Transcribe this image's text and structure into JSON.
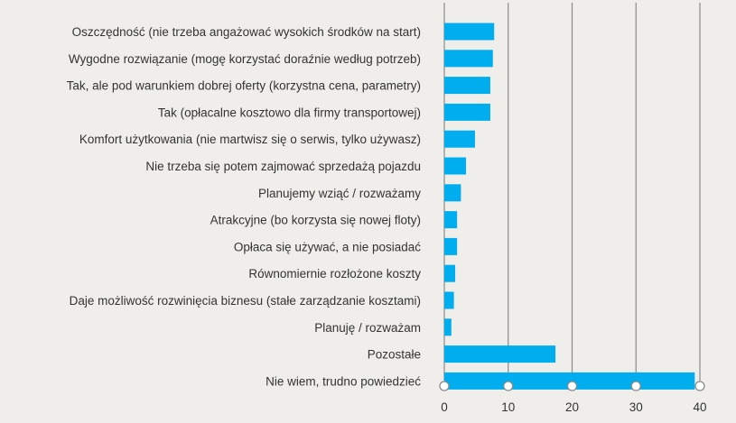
{
  "chart_data": {
    "type": "bar",
    "orientation": "horizontal",
    "categories": [
      "Oszczędność (nie trzeba angażować wysokich środków na start)",
      "Wygodne rozwiązanie (mogę korzystać doraźnie według potrzeb)",
      "Tak, ale pod warunkiem dobrej oferty (korzystna cena, parametry)",
      "Tak (opłacalne kosztowo dla firmy transportowej)",
      "Komfort użytkowania (nie martwisz się o serwis, tylko używasz)",
      "Nie trzeba się potem zajmować sprzedażą pojazdu",
      "Planujemy wziąć / rozważamy",
      "Atrakcyjne (bo korzysta się nowej floty)",
      "Opłaca się używać, a nie posiadać",
      "Równomiernie rozłożone koszty",
      "Daje możliwość rozwinięcia biznesu (stałe zarządzanie kosztami)",
      "Planuję / rozważam",
      "Pozostałe",
      "Nie wiem, trudno powiedzieć"
    ],
    "values": [
      7.8,
      7.6,
      7.2,
      7.2,
      4.8,
      3.4,
      2.6,
      2.0,
      2.0,
      1.7,
      1.5,
      1.1,
      17.4,
      39.2
    ],
    "xlim": [
      0,
      40
    ],
    "xticks": [
      0,
      10,
      20,
      30,
      40
    ],
    "title": "",
    "xlabel": "",
    "ylabel": "",
    "grid": true,
    "bar_color": "#00adef",
    "grid_color": "#8a8a8a",
    "background": "#f0eeeb"
  }
}
